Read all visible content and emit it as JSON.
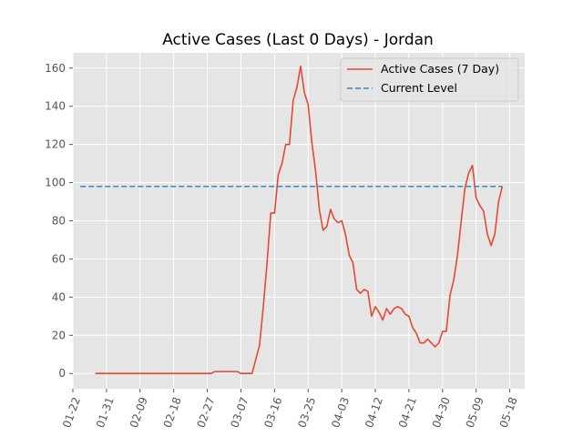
{
  "chart_data": {
    "type": "line",
    "title": "Active Cases (Last 0 Days) - Jordan",
    "xlabel": "",
    "ylabel": "",
    "ylim": [
      -8,
      168
    ],
    "xlim": [
      "2020-01-22",
      "2020-05-22"
    ],
    "x_ticks": [
      "01-22",
      "01-31",
      "02-09",
      "02-18",
      "02-27",
      "03-07",
      "03-16",
      "03-25",
      "04-03",
      "04-12",
      "04-21",
      "04-30",
      "05-09",
      "05-18",
      ""
    ],
    "y_ticks": [
      "0",
      "20",
      "40",
      "60",
      "80",
      "100",
      "120",
      "140",
      "160"
    ],
    "grid": true,
    "legend_position": "top-right",
    "colors": {
      "active": "#e24a33",
      "current": "#348abd",
      "plot_bg": "#e5e5e5",
      "grid": "#ffffff"
    },
    "series": [
      {
        "name": "Active Cases (7 Day)",
        "style": "solid",
        "points": [
          [
            "2020-01-28",
            0
          ],
          [
            "2020-02-28",
            0
          ],
          [
            "2020-02-29",
            1
          ],
          [
            "2020-03-06",
            1
          ],
          [
            "2020-03-07",
            0
          ],
          [
            "2020-03-10",
            0
          ],
          [
            "2020-03-12",
            15
          ],
          [
            "2020-03-13",
            35
          ],
          [
            "2020-03-14",
            58
          ],
          [
            "2020-03-15",
            84
          ],
          [
            "2020-03-16",
            84
          ],
          [
            "2020-03-17",
            104
          ],
          [
            "2020-03-18",
            110
          ],
          [
            "2020-03-19",
            120
          ],
          [
            "2020-03-20",
            120
          ],
          [
            "2020-03-21",
            143
          ],
          [
            "2020-03-22",
            150
          ],
          [
            "2020-03-23",
            161
          ],
          [
            "2020-03-24",
            147
          ],
          [
            "2020-03-25",
            141
          ],
          [
            "2020-03-26",
            121
          ],
          [
            "2020-03-27",
            106
          ],
          [
            "2020-03-28",
            86
          ],
          [
            "2020-03-29",
            75
          ],
          [
            "2020-03-30",
            77
          ],
          [
            "2020-03-31",
            86
          ],
          [
            "2020-04-01",
            81
          ],
          [
            "2020-04-02",
            79
          ],
          [
            "2020-04-03",
            80
          ],
          [
            "2020-04-04",
            73
          ],
          [
            "2020-04-05",
            62
          ],
          [
            "2020-04-06",
            58
          ],
          [
            "2020-04-07",
            44
          ],
          [
            "2020-04-08",
            42
          ],
          [
            "2020-04-09",
            44
          ],
          [
            "2020-04-10",
            43
          ],
          [
            "2020-04-11",
            30
          ],
          [
            "2020-04-12",
            35
          ],
          [
            "2020-04-13",
            32
          ],
          [
            "2020-04-14",
            28
          ],
          [
            "2020-04-15",
            34
          ],
          [
            "2020-04-16",
            31
          ],
          [
            "2020-04-17",
            34
          ],
          [
            "2020-04-18",
            35
          ],
          [
            "2020-04-19",
            34
          ],
          [
            "2020-04-20",
            31
          ],
          [
            "2020-04-21",
            30
          ],
          [
            "2020-04-22",
            24
          ],
          [
            "2020-04-23",
            21
          ],
          [
            "2020-04-24",
            16
          ],
          [
            "2020-04-25",
            16
          ],
          [
            "2020-04-26",
            18
          ],
          [
            "2020-04-27",
            16
          ],
          [
            "2020-04-28",
            14
          ],
          [
            "2020-04-29",
            16
          ],
          [
            "2020-04-30",
            22
          ],
          [
            "2020-05-01",
            22
          ],
          [
            "2020-05-02",
            41
          ],
          [
            "2020-05-03",
            49
          ],
          [
            "2020-05-04",
            62
          ],
          [
            "2020-05-05",
            80
          ],
          [
            "2020-05-06",
            97
          ],
          [
            "2020-05-07",
            105
          ],
          [
            "2020-05-08",
            109
          ],
          [
            "2020-05-09",
            92
          ],
          [
            "2020-05-10",
            88
          ],
          [
            "2020-05-11",
            85
          ],
          [
            "2020-05-12",
            73
          ],
          [
            "2020-05-13",
            67
          ],
          [
            "2020-05-14",
            73
          ],
          [
            "2020-05-15",
            90
          ],
          [
            "2020-05-16",
            98
          ]
        ]
      },
      {
        "name": "Current Level",
        "style": "dashed",
        "points": [
          [
            "2020-01-24",
            98
          ],
          [
            "2020-05-16",
            98
          ]
        ]
      }
    ]
  }
}
